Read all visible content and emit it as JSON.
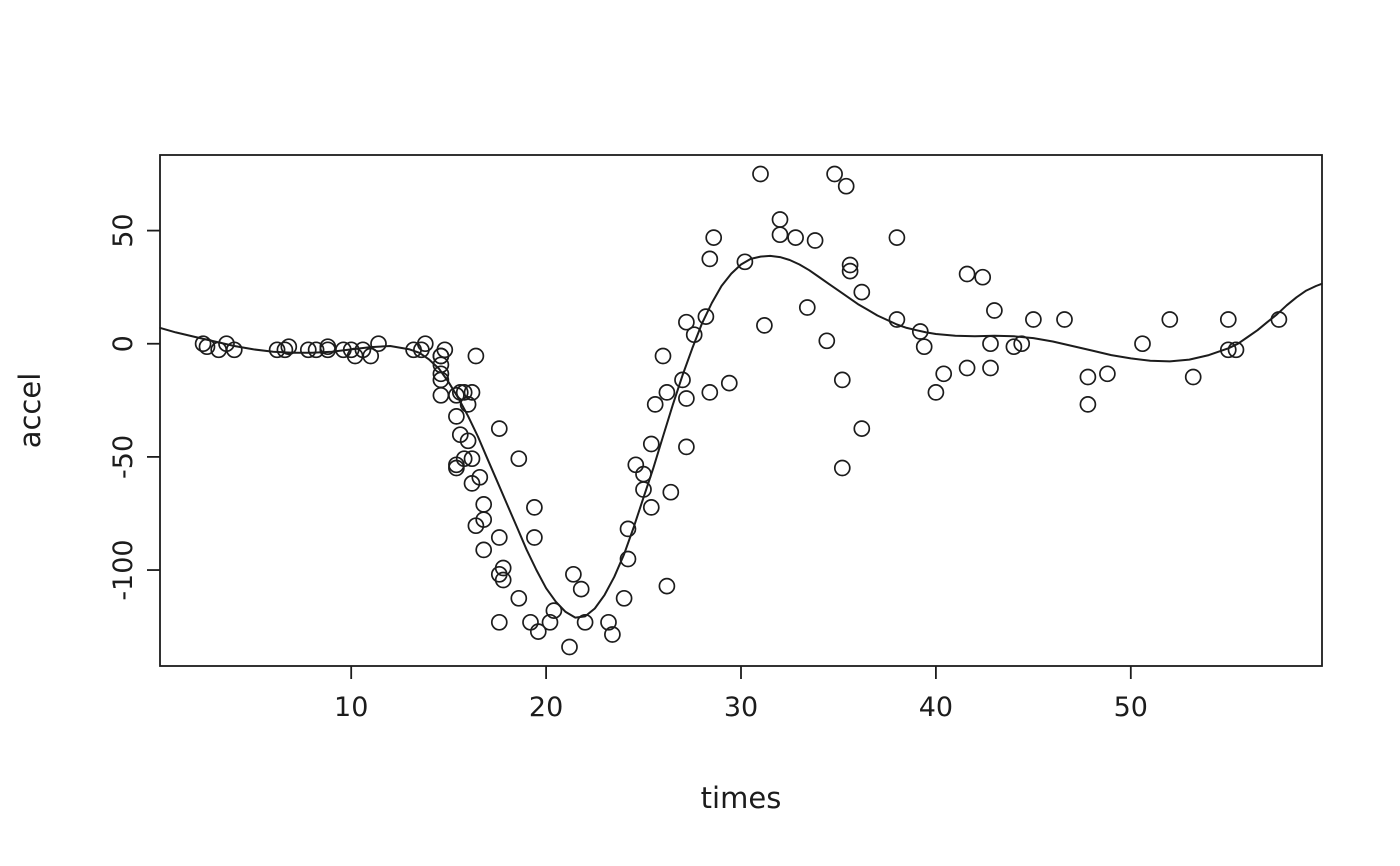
{
  "figure": {
    "background": "#ffffff",
    "foreground": "#1c1c1c"
  },
  "chart_data": {
    "type": "scatter",
    "title": "",
    "xlabel": "times",
    "ylabel": "accel",
    "xlim": [
      0.19,
      59.81
    ],
    "ylim": [
      -142.4,
      83.4
    ],
    "x_ticks": [
      10,
      20,
      30,
      40,
      50
    ],
    "y_ticks": [
      -100,
      -50,
      0,
      50
    ],
    "grid": false,
    "legend_position": "none",
    "marker": "open-circle",
    "points": {
      "name": "observations",
      "x": [
        2.4,
        2.6,
        3.2,
        3.6,
        4.0,
        6.2,
        6.6,
        6.8,
        7.8,
        8.2,
        8.8,
        8.8,
        9.6,
        10.0,
        10.2,
        10.6,
        11.0,
        11.4,
        13.2,
        13.6,
        13.8,
        14.6,
        14.6,
        14.6,
        14.6,
        14.6,
        14.6,
        14.8,
        15.4,
        15.4,
        15.4,
        15.4,
        15.6,
        15.6,
        15.8,
        15.8,
        16.0,
        16.0,
        16.2,
        16.2,
        16.2,
        16.4,
        16.4,
        16.6,
        16.8,
        16.8,
        16.8,
        17.6,
        17.6,
        17.6,
        17.6,
        17.8,
        17.8,
        18.6,
        18.6,
        19.2,
        19.4,
        19.4,
        19.6,
        20.2,
        20.4,
        21.2,
        21.4,
        21.8,
        22.0,
        23.2,
        23.4,
        24.0,
        24.2,
        24.2,
        24.6,
        25.0,
        25.0,
        25.4,
        25.4,
        25.6,
        26.0,
        26.2,
        26.2,
        26.4,
        27.0,
        27.2,
        27.2,
        27.2,
        27.6,
        28.2,
        28.4,
        28.4,
        28.6,
        29.4,
        30.2,
        31.0,
        31.2,
        32.0,
        32.0,
        32.8,
        33.4,
        33.8,
        34.4,
        34.8,
        35.2,
        35.2,
        35.4,
        35.6,
        35.6,
        36.2,
        36.2,
        38.0,
        38.0,
        39.2,
        39.4,
        40.0,
        40.4,
        41.6,
        41.6,
        42.4,
        42.8,
        42.8,
        43.0,
        44.0,
        44.4,
        45.0,
        46.6,
        47.8,
        47.8,
        48.8,
        50.6,
        52.0,
        53.2,
        55.0,
        55.0,
        55.4,
        57.6
      ],
      "y": [
        0.0,
        -1.3,
        -2.7,
        0.0,
        -2.7,
        -2.7,
        -2.7,
        -1.3,
        -2.7,
        -2.7,
        -1.3,
        -2.7,
        -2.7,
        -2.7,
        -5.4,
        -2.7,
        -5.4,
        0.0,
        -2.7,
        -2.7,
        0.0,
        -13.3,
        -5.4,
        -5.4,
        -9.3,
        -16.0,
        -22.8,
        -2.7,
        -22.8,
        -32.1,
        -53.5,
        -54.9,
        -40.2,
        -21.5,
        -21.5,
        -50.8,
        -42.9,
        -26.8,
        -21.5,
        -50.8,
        -61.7,
        -5.4,
        -80.4,
        -59.0,
        -71.0,
        -91.1,
        -77.7,
        -37.5,
        -85.6,
        -123.1,
        -101.9,
        -99.1,
        -104.4,
        -112.5,
        -50.8,
        -123.1,
        -85.6,
        -72.3,
        -127.2,
        -123.1,
        -117.9,
        -134.0,
        -101.9,
        -108.4,
        -123.1,
        -123.1,
        -128.5,
        -112.5,
        -95.1,
        -81.8,
        -53.5,
        -64.4,
        -57.6,
        -72.3,
        -44.3,
        -26.8,
        -5.4,
        -107.1,
        -21.5,
        -65.6,
        -16.0,
        -45.6,
        -24.2,
        9.5,
        4.0,
        12.0,
        -21.5,
        37.5,
        46.9,
        -17.4,
        36.2,
        75.0,
        8.1,
        54.9,
        48.2,
        46.9,
        16.0,
        45.6,
        1.3,
        75.0,
        -16.0,
        -54.9,
        69.6,
        34.8,
        32.1,
        -37.5,
        22.8,
        46.9,
        10.7,
        5.4,
        -1.3,
        -21.5,
        -13.3,
        30.8,
        -10.7,
        29.4,
        0.0,
        -10.7,
        14.7,
        -1.3,
        0.0,
        10.7,
        10.7,
        -26.8,
        -14.7,
        -13.3,
        0.0,
        10.7,
        -14.7,
        -2.7,
        10.7,
        -2.7,
        10.7
      ]
    },
    "smooth_line": {
      "name": "smooth-fit",
      "x": [
        0.2,
        1,
        2,
        3,
        4,
        5,
        6,
        7,
        8,
        9,
        10,
        11,
        12,
        13,
        13.5,
        14,
        14.5,
        15,
        15.5,
        16,
        16.5,
        17,
        17.5,
        18,
        18.5,
        19,
        19.5,
        20,
        20.5,
        21,
        21.5,
        22,
        22.5,
        23,
        23.5,
        24,
        24.5,
        25,
        25.5,
        26,
        26.5,
        27,
        27.5,
        28,
        28.5,
        29,
        29.5,
        30,
        30.5,
        31,
        31.5,
        32,
        32.5,
        33,
        33.5,
        34,
        34.5,
        35,
        35.5,
        36,
        36.5,
        37,
        37.5,
        38,
        38.5,
        39,
        39.5,
        40,
        41,
        42,
        43,
        44,
        45,
        46,
        47,
        48,
        49,
        50,
        51,
        52,
        53,
        54,
        55,
        55.5,
        56,
        56.5,
        57,
        57.5,
        58,
        58.5,
        59,
        59.5,
        59.8
      ],
      "y": [
        7,
        5,
        3,
        1,
        -1,
        -2.5,
        -3.5,
        -4,
        -4,
        -3.5,
        -2.5,
        -1.5,
        -1,
        -2.5,
        -4,
        -7,
        -11,
        -17,
        -24,
        -32,
        -41,
        -51,
        -61,
        -71,
        -81,
        -91,
        -100,
        -108,
        -114,
        -118.5,
        -121,
        -120.5,
        -117,
        -111,
        -103,
        -93,
        -81,
        -68,
        -55,
        -41,
        -27,
        -14,
        -2,
        9,
        18,
        25.5,
        31,
        35,
        37.5,
        38.5,
        38.8,
        38.3,
        37,
        35,
        32.5,
        29.5,
        26.5,
        23.5,
        20.5,
        17.5,
        15,
        12.5,
        10.5,
        8.5,
        7,
        6,
        5,
        4.3,
        3.5,
        3.3,
        3.5,
        3.3,
        2.5,
        1,
        -1,
        -3,
        -5,
        -6.5,
        -7.5,
        -7.8,
        -7,
        -5,
        -2,
        0,
        3,
        6,
        9.5,
        13,
        17,
        20.5,
        23.5,
        25.5,
        26.5
      ]
    }
  }
}
